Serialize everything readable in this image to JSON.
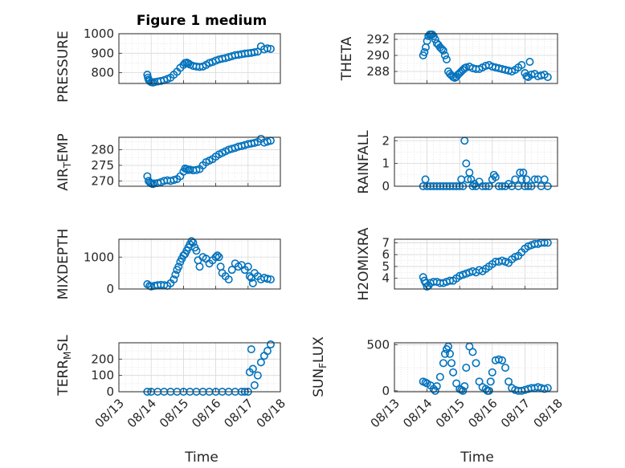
{
  "figure_title": "Figure 1 medium",
  "chart_data": [
    {
      "type": "scatter",
      "id": "pressure",
      "ylabel": "PRESSURE",
      "ylim": [
        745,
        1000
      ],
      "yticks": [
        800,
        900,
        1000
      ],
      "x": [
        "08/13",
        "08/14",
        "08/15",
        "08/16",
        "08/17",
        "08/18"
      ],
      "xlim": [
        0,
        5
      ],
      "series": [
        {
          "x": [
            0.88,
            0.9,
            0.92,
            0.95,
            1.0,
            1.05,
            1.1,
            1.2,
            1.3,
            1.4,
            1.5,
            1.6,
            1.7,
            1.8,
            1.9,
            2.0,
            2.05,
            2.1,
            2.15,
            2.2,
            2.3,
            2.4,
            2.5,
            2.6,
            2.7,
            2.8,
            2.9,
            3.0,
            3.1,
            3.2,
            3.3,
            3.4,
            3.5,
            3.6,
            3.7,
            3.8,
            3.9,
            4.0,
            4.1,
            4.2,
            4.3,
            4.4,
            4.5,
            4.6,
            4.7
          ],
          "y": [
            790,
            775,
            765,
            758,
            752,
            750,
            752,
            755,
            758,
            762,
            768,
            775,
            790,
            805,
            825,
            840,
            850,
            852,
            848,
            842,
            835,
            832,
            830,
            832,
            840,
            850,
            855,
            862,
            868,
            872,
            875,
            880,
            885,
            890,
            892,
            895,
            898,
            900,
            902,
            905,
            908,
            935,
            920,
            925,
            922
          ]
        }
      ]
    },
    {
      "type": "scatter",
      "id": "theta",
      "ylabel": "THETA",
      "ylim": [
        286.5,
        292.7
      ],
      "yticks": [
        288,
        290,
        292
      ],
      "xlim": [
        0,
        5
      ],
      "series": [
        {
          "x": [
            0.88,
            0.92,
            0.96,
            1.0,
            1.04,
            1.08,
            1.12,
            1.16,
            1.2,
            1.25,
            1.3,
            1.35,
            1.4,
            1.45,
            1.5,
            1.55,
            1.6,
            1.65,
            1.7,
            1.75,
            1.8,
            1.85,
            1.9,
            1.95,
            2.0,
            2.05,
            2.1,
            2.15,
            2.2,
            2.3,
            2.4,
            2.5,
            2.6,
            2.7,
            2.8,
            2.9,
            3.0,
            3.1,
            3.2,
            3.3,
            3.4,
            3.5,
            3.6,
            3.7,
            3.8,
            3.9,
            4.0,
            4.05,
            4.1,
            4.15,
            4.2,
            4.3,
            4.4,
            4.5,
            4.6,
            4.7
          ],
          "y": [
            290.0,
            290.4,
            291.0,
            291.8,
            292.4,
            292.6,
            292.6,
            292.6,
            292.4,
            292.0,
            291.5,
            291.3,
            291.0,
            290.8,
            290.6,
            290.0,
            289.5,
            288.0,
            287.7,
            287.5,
            287.3,
            287.2,
            287.3,
            287.6,
            287.8,
            288.0,
            288.2,
            288.4,
            288.5,
            288.6,
            288.4,
            288.3,
            288.3,
            288.5,
            288.7,
            288.8,
            288.6,
            288.5,
            288.4,
            288.3,
            288.2,
            288.1,
            288.0,
            288.2,
            288.5,
            288.8,
            287.8,
            287.4,
            287.3,
            289.2,
            287.6,
            287.7,
            287.4,
            287.5,
            287.6,
            287.3
          ]
        }
      ]
    },
    {
      "type": "scatter",
      "id": "air_temp",
      "ylabel": "AIR_TEMP",
      "ylim": [
        268.3,
        284
      ],
      "yticks": [
        270,
        275,
        280
      ],
      "xlim": [
        0,
        5
      ],
      "series": [
        {
          "x": [
            0.88,
            0.92,
            0.96,
            1.0,
            1.05,
            1.1,
            1.2,
            1.3,
            1.4,
            1.5,
            1.6,
            1.7,
            1.8,
            1.9,
            2.0,
            2.05,
            2.1,
            2.15,
            2.2,
            2.3,
            2.4,
            2.5,
            2.6,
            2.7,
            2.8,
            2.9,
            3.0,
            3.1,
            3.2,
            3.3,
            3.4,
            3.5,
            3.6,
            3.7,
            3.8,
            3.9,
            4.0,
            4.1,
            4.2,
            4.3,
            4.4,
            4.5,
            4.6,
            4.7
          ],
          "y": [
            271.5,
            270.0,
            269.5,
            269.2,
            269.0,
            269.2,
            269.3,
            269.6,
            270.0,
            270.2,
            270.0,
            270.3,
            270.6,
            271.5,
            273.0,
            274.0,
            273.8,
            273.5,
            273.6,
            273.4,
            273.5,
            273.8,
            275.0,
            276.0,
            276.5,
            277.0,
            277.8,
            278.5,
            279.0,
            279.5,
            280.0,
            280.3,
            280.6,
            281.0,
            281.2,
            281.5,
            281.8,
            282.0,
            282.2,
            282.5,
            283.5,
            282.3,
            282.6,
            282.9
          ]
        }
      ]
    },
    {
      "type": "scatter",
      "id": "rainfall",
      "ylabel": "RAINFALL",
      "ylim": [
        0,
        2.15
      ],
      "yticks": [
        0,
        1,
        2
      ],
      "xlim": [
        0,
        5
      ],
      "series": [
        {
          "x": [
            0.88,
            0.95,
            1.0,
            1.1,
            1.2,
            1.3,
            1.4,
            1.5,
            1.6,
            1.7,
            1.8,
            1.9,
            2.0,
            2.05,
            2.1,
            2.15,
            2.2,
            2.25,
            2.3,
            2.35,
            2.4,
            2.45,
            2.5,
            2.6,
            2.7,
            2.8,
            2.9,
            3.0,
            3.05,
            3.1,
            3.2,
            3.3,
            3.4,
            3.5,
            3.6,
            3.7,
            3.8,
            3.85,
            3.9,
            3.95,
            4.0,
            4.05,
            4.1,
            4.2,
            4.3,
            4.4,
            4.5,
            4.6,
            4.7
          ],
          "y": [
            0,
            0.3,
            0,
            0,
            0,
            0,
            0,
            0,
            0,
            0,
            0,
            0,
            0,
            0.3,
            0,
            2.0,
            1.0,
            0.3,
            0.6,
            0.3,
            0,
            0.1,
            0,
            0.2,
            0,
            0,
            0,
            0.3,
            0.5,
            0.4,
            0,
            0,
            0,
            0.1,
            0,
            0.3,
            0,
            0.6,
            0.3,
            0.6,
            0,
            0.3,
            0,
            0,
            0.3,
            0.3,
            0,
            0.3,
            0
          ]
        }
      ]
    },
    {
      "type": "scatter",
      "id": "mixdepth",
      "ylabel": "MIXDEPTH",
      "ylim": [
        0,
        1560
      ],
      "yticks": [
        0,
        1000
      ],
      "xlim": [
        0,
        5
      ],
      "series": [
        {
          "x": [
            0.88,
            0.95,
            1.0,
            1.1,
            1.2,
            1.3,
            1.4,
            1.5,
            1.6,
            1.7,
            1.75,
            1.8,
            1.85,
            1.9,
            1.95,
            2.0,
            2.05,
            2.1,
            2.15,
            2.2,
            2.25,
            2.3,
            2.35,
            2.4,
            2.45,
            2.5,
            2.6,
            2.7,
            2.8,
            2.9,
            3.0,
            3.05,
            3.1,
            3.15,
            3.2,
            3.3,
            3.4,
            3.5,
            3.6,
            3.7,
            3.8,
            3.9,
            4.0,
            4.05,
            4.1,
            4.15,
            4.2,
            4.3,
            4.4,
            4.5,
            4.6,
            4.7
          ],
          "y": [
            150,
            100,
            80,
            100,
            120,
            130,
            120,
            100,
            180,
            300,
            450,
            600,
            700,
            850,
            950,
            1050,
            1100,
            1200,
            1300,
            1400,
            1500,
            1450,
            1300,
            1200,
            900,
            700,
            1000,
            950,
            800,
            900,
            1000,
            1050,
            1000,
            700,
            500,
            400,
            300,
            600,
            800,
            700,
            750,
            600,
            700,
            400,
            350,
            180,
            500,
            400,
            300,
            350,
            320,
            300
          ]
        }
      ]
    },
    {
      "type": "scatter",
      "id": "h2omixra",
      "ylabel": "H2OMIXRA",
      "ylim": [
        3.1,
        7.3
      ],
      "yticks": [
        4,
        5,
        6,
        7
      ],
      "xlim": [
        0,
        5
      ],
      "series": [
        {
          "x": [
            0.88,
            0.92,
            0.96,
            1.0,
            1.05,
            1.1,
            1.2,
            1.3,
            1.4,
            1.5,
            1.6,
            1.7,
            1.8,
            1.9,
            2.0,
            2.1,
            2.2,
            2.3,
            2.4,
            2.5,
            2.6,
            2.7,
            2.8,
            2.9,
            3.0,
            3.1,
            3.2,
            3.3,
            3.4,
            3.5,
            3.6,
            3.7,
            3.8,
            3.9,
            4.0,
            4.1,
            4.2,
            4.3,
            4.4,
            4.5,
            4.6,
            4.7
          ],
          "y": [
            4.1,
            3.8,
            3.6,
            3.3,
            3.4,
            3.6,
            3.7,
            3.7,
            3.6,
            3.6,
            3.7,
            3.8,
            3.8,
            4.0,
            4.2,
            4.3,
            4.4,
            4.5,
            4.6,
            4.5,
            4.7,
            4.6,
            4.8,
            5.0,
            5.2,
            5.4,
            5.4,
            5.5,
            5.4,
            5.3,
            5.6,
            5.8,
            5.9,
            6.2,
            6.5,
            6.7,
            6.8,
            6.9,
            6.9,
            7.0,
            7.0,
            7.0
          ]
        }
      ]
    },
    {
      "type": "scatter",
      "id": "terr_msl",
      "ylabel": "TERR_MSL",
      "ylim": [
        0,
        300
      ],
      "yticks": [
        0,
        100,
        200
      ],
      "xlim": [
        0,
        5
      ],
      "series": [
        {
          "x": [
            0.88,
            1.0,
            1.2,
            1.4,
            1.6,
            1.8,
            2.0,
            2.2,
            2.4,
            2.6,
            2.8,
            3.0,
            3.2,
            3.4,
            3.6,
            3.8,
            3.9,
            4.0,
            4.05,
            4.1,
            4.15,
            4.2,
            4.3,
            4.4,
            4.5,
            4.6,
            4.7
          ],
          "y": [
            0,
            0,
            0,
            0,
            0,
            0,
            0,
            0,
            0,
            0,
            0,
            0,
            0,
            0,
            0,
            0,
            0,
            0,
            120,
            260,
            140,
            40,
            100,
            180,
            220,
            250,
            290
          ]
        }
      ]
    },
    {
      "type": "scatter",
      "id": "sun_flux",
      "ylabel": "SUN_FLUX",
      "ylim": [
        -10,
        520
      ],
      "yticks": [
        0,
        500
      ],
      "xlim": [
        0,
        5
      ],
      "series": [
        {
          "x": [
            0.88,
            0.95,
            1.0,
            1.1,
            1.2,
            1.25,
            1.3,
            1.4,
            1.5,
            1.55,
            1.6,
            1.65,
            1.7,
            1.75,
            1.8,
            1.9,
            2.0,
            2.05,
            2.1,
            2.15,
            2.2,
            2.3,
            2.4,
            2.5,
            2.6,
            2.7,
            2.8,
            2.85,
            2.9,
            2.95,
            3.0,
            3.1,
            3.2,
            3.3,
            3.4,
            3.5,
            3.6,
            3.7,
            3.8,
            3.9,
            4.0,
            4.1,
            4.2,
            4.3,
            4.4,
            4.5,
            4.6,
            4.7
          ],
          "y": [
            100,
            90,
            80,
            60,
            20,
            0,
            50,
            150,
            300,
            400,
            450,
            480,
            400,
            300,
            200,
            80,
            20,
            10,
            0,
            50,
            250,
            480,
            420,
            300,
            100,
            40,
            20,
            0,
            0,
            100,
            200,
            330,
            340,
            330,
            250,
            100,
            30,
            10,
            0,
            0,
            10,
            20,
            30,
            30,
            40,
            30,
            20,
            30
          ]
        }
      ]
    }
  ],
  "labels": {
    "xlabel": "Time",
    "ylabels": {
      "pressure": "PRESSURE",
      "theta": "THETA",
      "air_temp_main": "AIR",
      "air_temp_sub": "T",
      "air_temp_tail": "EMP",
      "rainfall": "RAINFALL",
      "mixdepth": "MIXDEPTH",
      "h2omixra": "H2OMIXRA",
      "terr_main": "TERR",
      "terr_sub": "M",
      "terr_tail": "SL",
      "sun_main": "SUN",
      "sun_sub": "F",
      "sun_tail": "LUX"
    }
  }
}
